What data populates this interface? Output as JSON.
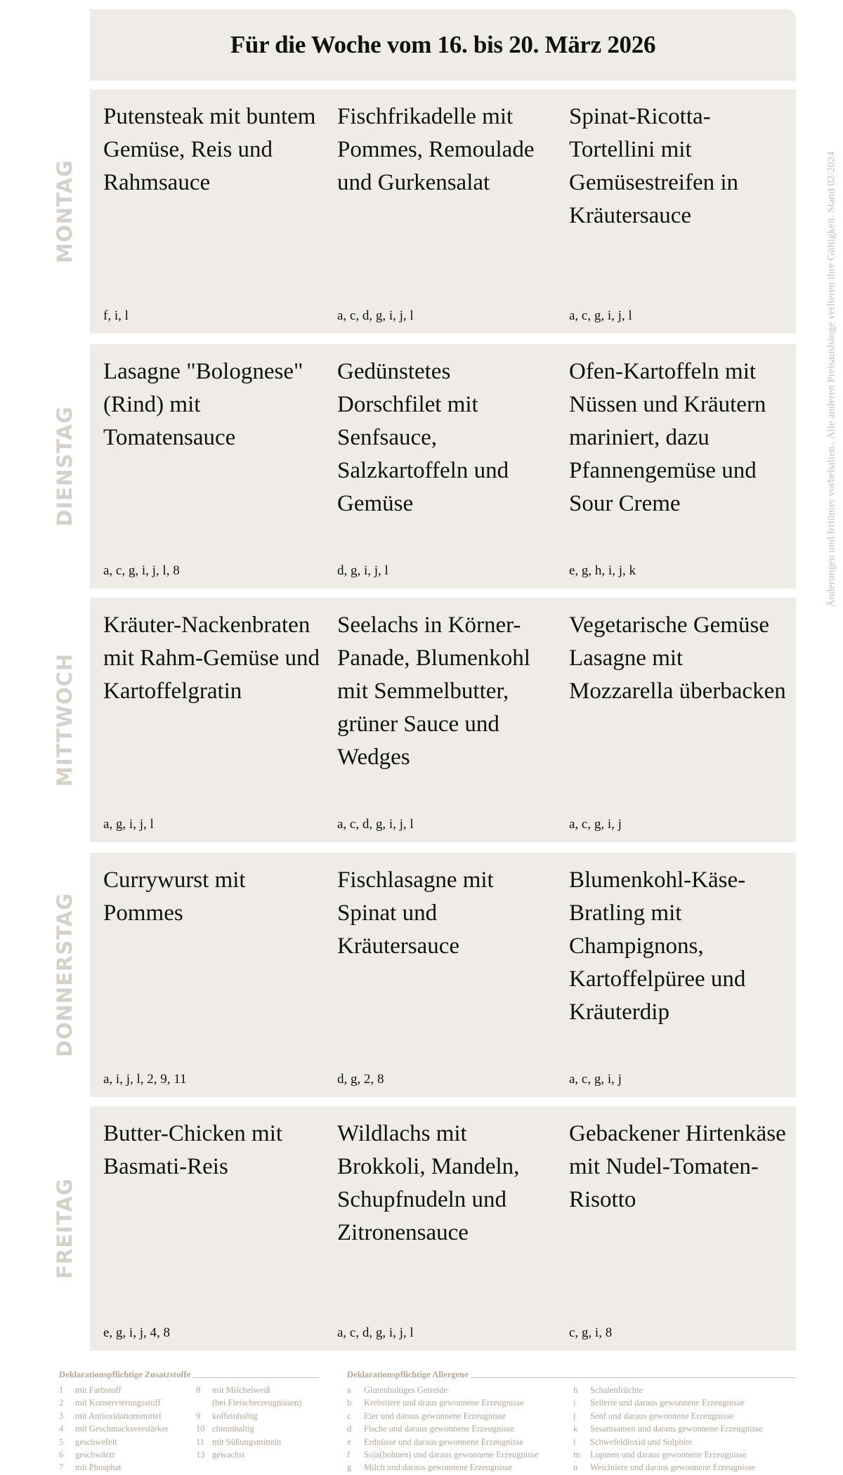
{
  "title": "Für die Woche vom 16. bis 20. März 2026",
  "side_note": "Änderungen und Irrtümer vorbehalten.. Alle anderen Preisaushänge verlieren ihre Gültigkeit. Stand 02/2024",
  "days": [
    {
      "label": "MONTAG",
      "dishes": [
        {
          "name": "Putensteak mit buntem Gemüse, Reis und Rahmsauce",
          "allergens": "f, i, l"
        },
        {
          "name": "Fischfrikadelle mit Pommes, Remoulade und Gurkensalat",
          "allergens": "a, c, d, g, i, j, l"
        },
        {
          "name": "Spinat-Ricotta-Tortellini mit Gemüsestreifen in Kräutersauce",
          "allergens": "a, c, g, i, j, l"
        }
      ]
    },
    {
      "label": "DIENSTAG",
      "dishes": [
        {
          "name": "Lasagne \"Bolognese\" (Rind) mit  Tomatensauce",
          "allergens": "a, c, g, i, j, l, 8"
        },
        {
          "name": "Gedünstetes Dorschfilet mit Senfsauce, Salzkartoffeln und Gemüse",
          "allergens": "d, g, i, j, l"
        },
        {
          "name": "Ofen-Kartoffeln mit Nüssen und Kräutern mariniert, dazu Pfannengemüse und Sour Creme",
          "allergens": "e, g, h, i, j, k"
        }
      ]
    },
    {
      "label": "MITTWOCH",
      "dishes": [
        {
          "name": "Kräuter-Nackenbraten mit Rahm-Gemüse und Kartoffelgratin",
          "allergens": "a, g, i, j, l"
        },
        {
          "name": "Seelachs in Körner-Panade, Blumenkohl mit Semmelbutter, grüner Sauce und Wedges",
          "allergens": "a, c, d, g, i, j, l"
        },
        {
          "name": "Vegetarische Gemüse Lasagne mit Mozzarella überbacken",
          "allergens": "a, c, g, i, j"
        }
      ]
    },
    {
      "label": "DONNERSTAG",
      "dishes": [
        {
          "name": "Currywurst mit Pommes",
          "allergens": "a, i, j, l, 2, 9, 11"
        },
        {
          "name": "Fischlasagne mit Spinat und Kräutersauce",
          "allergens": "d, g, 2, 8"
        },
        {
          "name": "Blumenkohl-Käse-Bratling mit Champignons, Kartoffelpüree und Kräuterdip",
          "allergens": "a, c, g, i, j"
        }
      ]
    },
    {
      "label": "FREITAG",
      "dishes": [
        {
          "name": "Butter-Chicken mit Basmati-Reis",
          "allergens": "e, g, i, j, 4, 8"
        },
        {
          "name": "Wildlachs mit Brokkoli, Mandeln, Schupfnudeln und Zitronensauce",
          "allergens": "a, c, d, g, i, j, l"
        },
        {
          "name": "Gebackener Hirtenkäse mit Nudel-Tomaten-Risotto",
          "allergens": "c, g, i, 8"
        }
      ]
    }
  ],
  "additives": {
    "heading": "Deklarationspflichtige Zusatzstoffe",
    "items": [
      {
        "k": "1",
        "t": "mit Farbstoff"
      },
      {
        "k": "2",
        "t": "mit Konservierungsstoff"
      },
      {
        "k": "3",
        "t": "mit Antioxidationsmittel"
      },
      {
        "k": "4",
        "t": "mit Geschmacksverstärker"
      },
      {
        "k": "5",
        "t": "geschwefelt"
      },
      {
        "k": "6",
        "t": "geschwärzt"
      },
      {
        "k": "7",
        "t": "mit Phosphat"
      },
      {
        "k": "8",
        "t": "mit Milcheiweiß"
      },
      {
        "k": "",
        "t": "(bei Fleischerzeugnissen)"
      },
      {
        "k": "9",
        "t": "koffeinhaltig"
      },
      {
        "k": "10",
        "t": "chininhaltig"
      },
      {
        "k": "11",
        "t": "mit Süßungsmitteln"
      },
      {
        "k": "13",
        "t": "gewachst"
      }
    ]
  },
  "allergens": {
    "heading": "Deklarationspflichtige Allergene",
    "items": [
      {
        "k": "a",
        "t": "Glutenhaltiges Getreide"
      },
      {
        "k": "b",
        "t": "Krebstiere und draus gewonnene Erzeugnisse"
      },
      {
        "k": "c",
        "t": "Eier und daraus gewonnene Erzeugnisse"
      },
      {
        "k": "d",
        "t": "Fische und daraus gewonnene Erzeugnisse"
      },
      {
        "k": "e",
        "t": "Erdnüsse und daraus gewonnene Erzeugnisse"
      },
      {
        "k": "f",
        "t": "Soja(bohnen) und daraus gewonnene Erzeugnisse"
      },
      {
        "k": "g",
        "t": "Milch und daraus gewonnene Erzeugnisse"
      },
      {
        "k": "h",
        "t": "Schalenfrüchte"
      },
      {
        "k": "i",
        "t": "Sellerie und daraus gewonnene Erzeugnisse"
      },
      {
        "k": "j",
        "t": "Senf und daraus gewonnene Erzeugnisse"
      },
      {
        "k": "k",
        "t": "Sesamsamen und daraus gewonnene Erzeugnisse"
      },
      {
        "k": "l",
        "t": "Schwefeldioxid und Sulphite"
      },
      {
        "k": "m",
        "t": "Lupinen und daraus gewonnene Erzeugnisse"
      },
      {
        "k": "n",
        "t": "Weichtiere und daraus gewonnene Erzeugnisse"
      }
    ]
  }
}
